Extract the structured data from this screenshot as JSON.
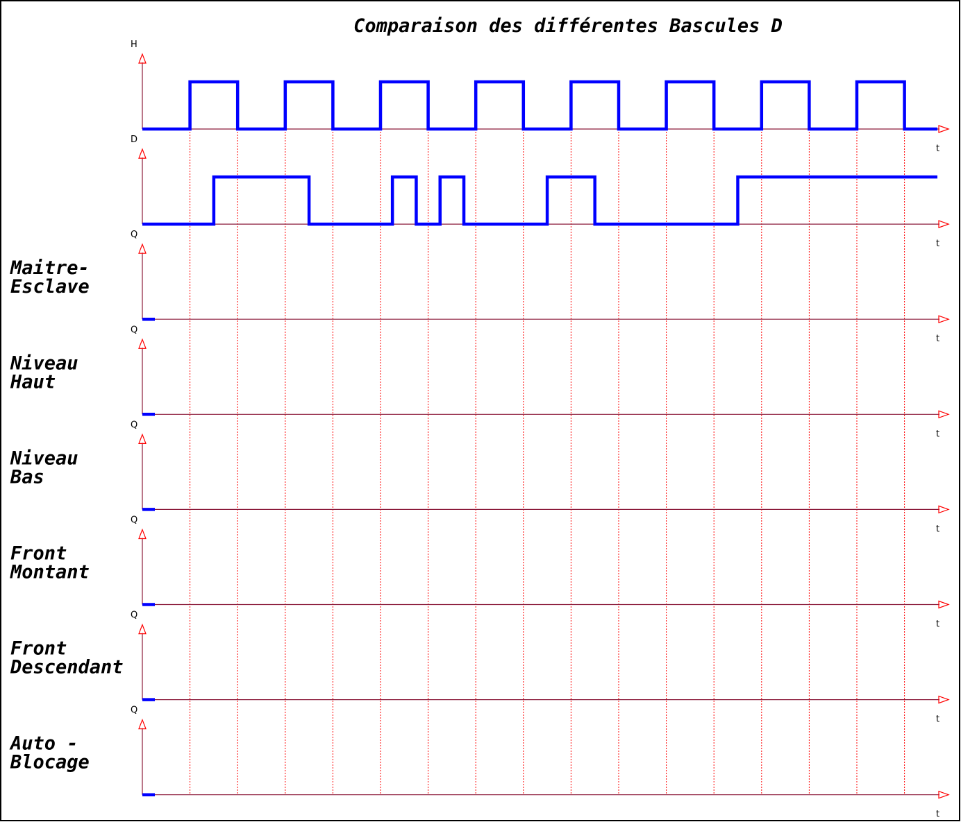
{
  "title": "Comparaison des différentes Bascules D",
  "x_axis_label": "t",
  "colors": {
    "axis": "#8b1a3a",
    "arrowhead": "#ff0000",
    "grid": "#ff0000",
    "signal": "#0000ff",
    "frame": "#000000"
  },
  "clock_edges": 16,
  "rows": [
    {
      "id": "clock",
      "signal_label": "H",
      "name_lines": [],
      "waveform": [
        [
          0,
          0
        ],
        [
          1,
          1
        ],
        [
          2,
          0
        ],
        [
          3,
          1
        ],
        [
          4,
          0
        ],
        [
          5,
          1
        ],
        [
          6,
          0
        ],
        [
          7,
          1
        ],
        [
          8,
          0
        ],
        [
          9,
          1
        ],
        [
          10,
          0
        ],
        [
          11,
          1
        ],
        [
          12,
          0
        ],
        [
          13,
          1
        ],
        [
          14,
          0
        ],
        [
          15,
          1
        ],
        [
          16,
          0
        ]
      ]
    },
    {
      "id": "data",
      "signal_label": "D",
      "name_lines": [],
      "waveform": [
        [
          0,
          0
        ],
        [
          1.5,
          1
        ],
        [
          3.5,
          0
        ],
        [
          5.25,
          1
        ],
        [
          5.75,
          0
        ],
        [
          6.25,
          1
        ],
        [
          6.75,
          0
        ],
        [
          8.5,
          1
        ],
        [
          9.5,
          0
        ],
        [
          12.5,
          1
        ]
      ]
    },
    {
      "id": "maitre-esclave",
      "signal_label": "Q",
      "name_lines": [
        "Maitre-",
        "Esclave"
      ],
      "waveform": []
    },
    {
      "id": "niveau-haut",
      "signal_label": "Q",
      "name_lines": [
        "Niveau",
        "Haut"
      ],
      "waveform": []
    },
    {
      "id": "niveau-bas",
      "signal_label": "Q",
      "name_lines": [
        "Niveau",
        "Bas"
      ],
      "waveform": []
    },
    {
      "id": "front-montant",
      "signal_label": "Q",
      "name_lines": [
        "Front",
        "Montant"
      ],
      "waveform": []
    },
    {
      "id": "front-descendant",
      "signal_label": "Q",
      "name_lines": [
        "Front",
        "Descendant"
      ],
      "waveform": []
    },
    {
      "id": "auto-blocage",
      "signal_label": "Q",
      "name_lines": [
        "Auto -",
        "Blocage"
      ],
      "waveform": []
    }
  ]
}
